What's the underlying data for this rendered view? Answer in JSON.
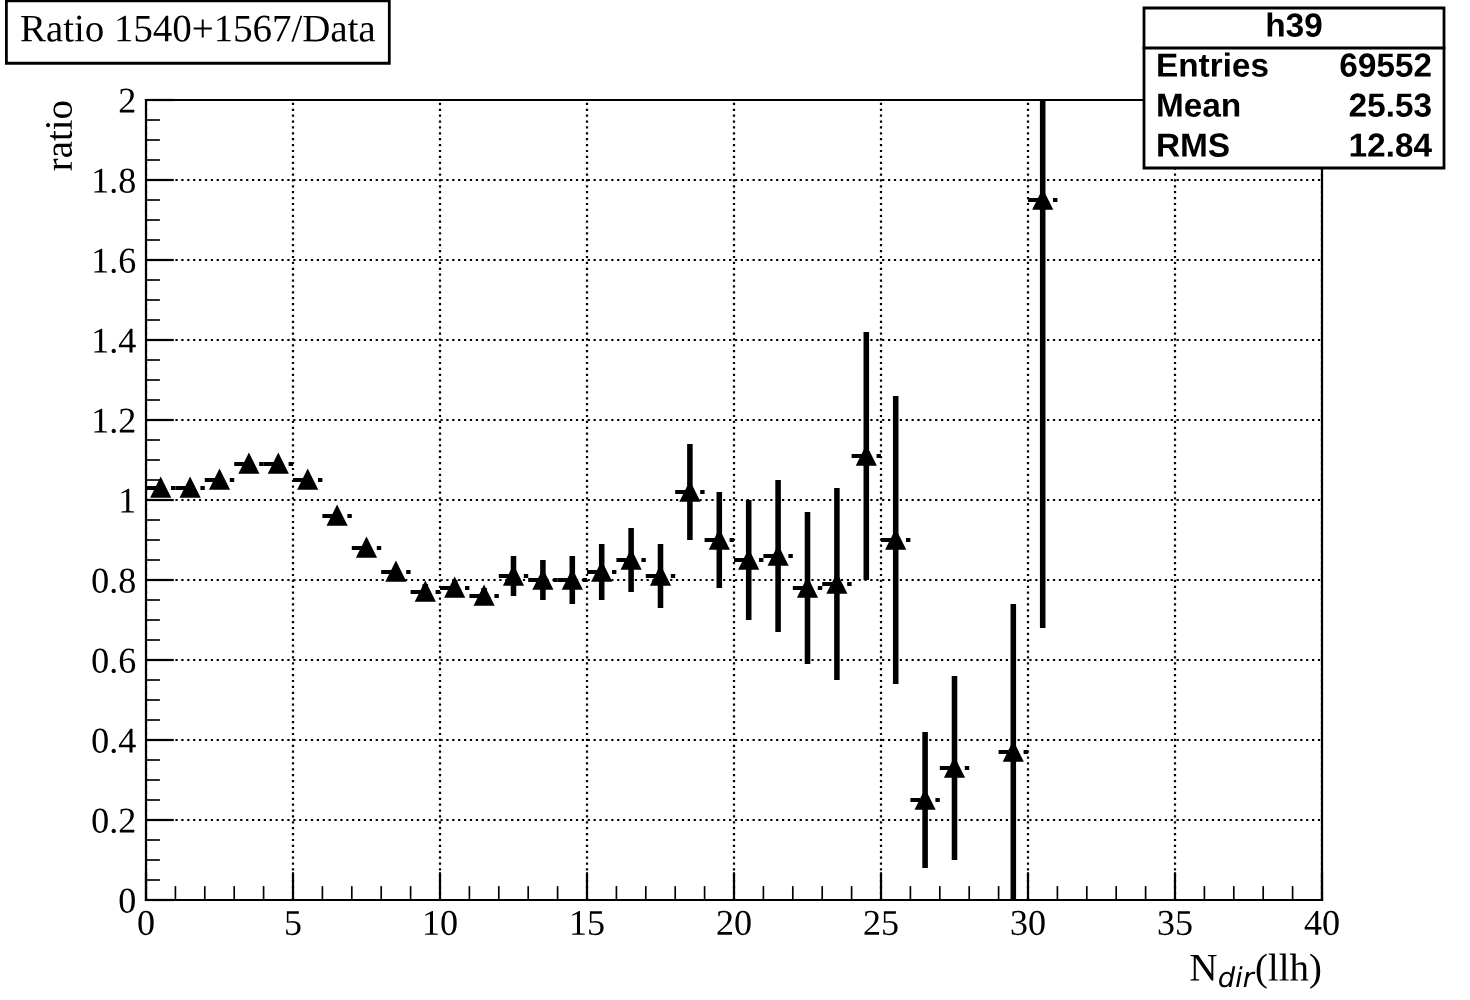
{
  "chart_data": {
    "type": "scatter",
    "title": "Ratio 1540+1567/Data",
    "xlabel": "N$_{dir}$(llh)",
    "ylabel": "ratio",
    "x": [
      0.5,
      1.5,
      2.5,
      3.5,
      4.5,
      5.5,
      6.5,
      7.5,
      8.5,
      9.5,
      10.5,
      11.5,
      12.5,
      13.5,
      14.5,
      15.5,
      16.5,
      17.5,
      18.5,
      19.5,
      20.5,
      21.5,
      22.5,
      23.5,
      24.5,
      25.5,
      26.5,
      27.5,
      29.5,
      30.5
    ],
    "values": [
      1.03,
      1.03,
      1.05,
      1.09,
      1.09,
      1.05,
      0.96,
      0.88,
      0.82,
      0.77,
      0.78,
      0.76,
      0.81,
      0.8,
      0.8,
      0.82,
      0.85,
      0.81,
      1.02,
      0.9,
      0.85,
      0.86,
      0.78,
      0.79,
      1.11,
      0.9,
      0.25,
      0.33,
      0.37,
      1.75
    ],
    "errors": [
      null,
      null,
      null,
      null,
      null,
      null,
      null,
      null,
      null,
      0.02,
      0.02,
      0.02,
      0.05,
      0.05,
      0.06,
      0.07,
      0.08,
      0.08,
      0.12,
      0.12,
      0.15,
      0.19,
      0.19,
      0.24,
      0.31,
      0.36,
      0.17,
      0.23,
      0.37,
      [
        0.68,
        2
      ]
    ],
    "xerrors": [
      0.5,
      0.5,
      0.5,
      0.5,
      0.5,
      0.5,
      0.5,
      0.5,
      0.5,
      0.5,
      0.5,
      0.5,
      0.5,
      0.5,
      0.5,
      0.5,
      0.5,
      0.5,
      0.5,
      0.5,
      0.5,
      0.5,
      0.5,
      0.5,
      0.5,
      0.5,
      0.5,
      0.5,
      0.5,
      0.5
    ],
    "color": "#000000",
    "marker": "triangle",
    "xlim": [
      0,
      40
    ],
    "xticks": [
      0,
      5,
      10,
      15,
      20,
      25,
      30,
      35,
      40
    ],
    "ylim": [
      0,
      2
    ],
    "yticks": [
      0,
      0.2,
      0.4,
      0.6,
      0.8,
      1,
      1.2,
      1.4,
      1.6,
      1.8,
      2
    ],
    "grid": true,
    "annotations": [
      "h39",
      "Entries",
      "69552",
      "Mean",
      "25.53",
      "RMS",
      "12.84"
    ]
  }
}
